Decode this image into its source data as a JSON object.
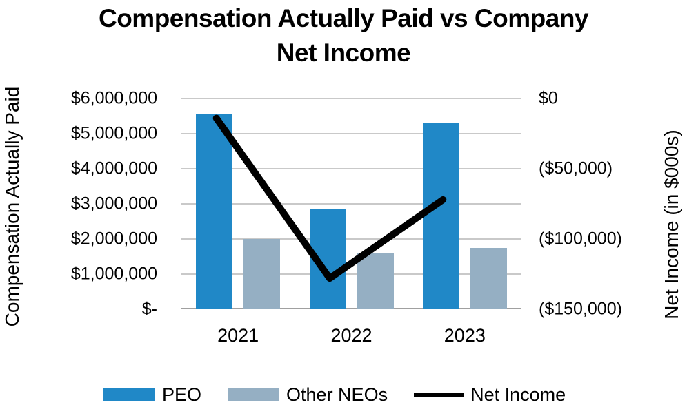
{
  "title": {
    "line1": "Compensation Actually Paid vs Company",
    "line2": "Net Income"
  },
  "left_axis": {
    "title": "Compensation Actually Paid",
    "ticks": [
      "$6,000,000",
      "$5,000,000",
      "$4,000,000",
      "$3,000,000",
      "$2,000,000",
      "$1,000,000",
      "$-"
    ]
  },
  "right_axis": {
    "title": "Net Income (in $000s)",
    "ticks": [
      "$0",
      "($50,000)",
      "($100,000)",
      "($150,000)"
    ]
  },
  "x_axis": {
    "categories": [
      "2021",
      "2022",
      "2023"
    ]
  },
  "legend": [
    {
      "label": "PEO",
      "swatch": "bar",
      "color": "#2088C7"
    },
    {
      "label": "Other NEOs",
      "swatch": "bar",
      "color": "#95AFC3"
    },
    {
      "label": "Net Income",
      "swatch": "line",
      "color": "#000000"
    }
  ],
  "colors": {
    "peo_bar": "#2088C7",
    "other_neos_bar": "#95AFC3",
    "net_income_line": "#000000",
    "gridline": "#C9C9C9",
    "axis_line": "#A0A0A0",
    "text": "#000000",
    "background": "#FFFFFF"
  },
  "chart_data": {
    "type": "bar+line",
    "title": "Compensation Actually Paid vs Company Net Income",
    "categories": [
      "2021",
      "2022",
      "2023"
    ],
    "series": [
      {
        "name": "PEO",
        "type": "bar",
        "axis": "left",
        "color": "#2088C7",
        "values": [
          5550000,
          2850000,
          5300000
        ]
      },
      {
        "name": "Other NEOs",
        "type": "bar",
        "axis": "left",
        "color": "#95AFC3",
        "values": [
          2000000,
          1600000,
          1750000
        ]
      },
      {
        "name": "Net Income",
        "type": "line",
        "axis": "right",
        "color": "#000000",
        "values": [
          -14000,
          -128000,
          -72000
        ]
      }
    ],
    "left_ylabel": "Compensation Actually Paid",
    "right_ylabel": "Net Income (in $000s)",
    "left_ylim": [
      0,
      6000000
    ],
    "right_ylim": [
      -150000,
      0
    ],
    "left_tick_step": 1000000,
    "right_tick_step": 50000,
    "grid": true,
    "legend_position": "bottom"
  }
}
